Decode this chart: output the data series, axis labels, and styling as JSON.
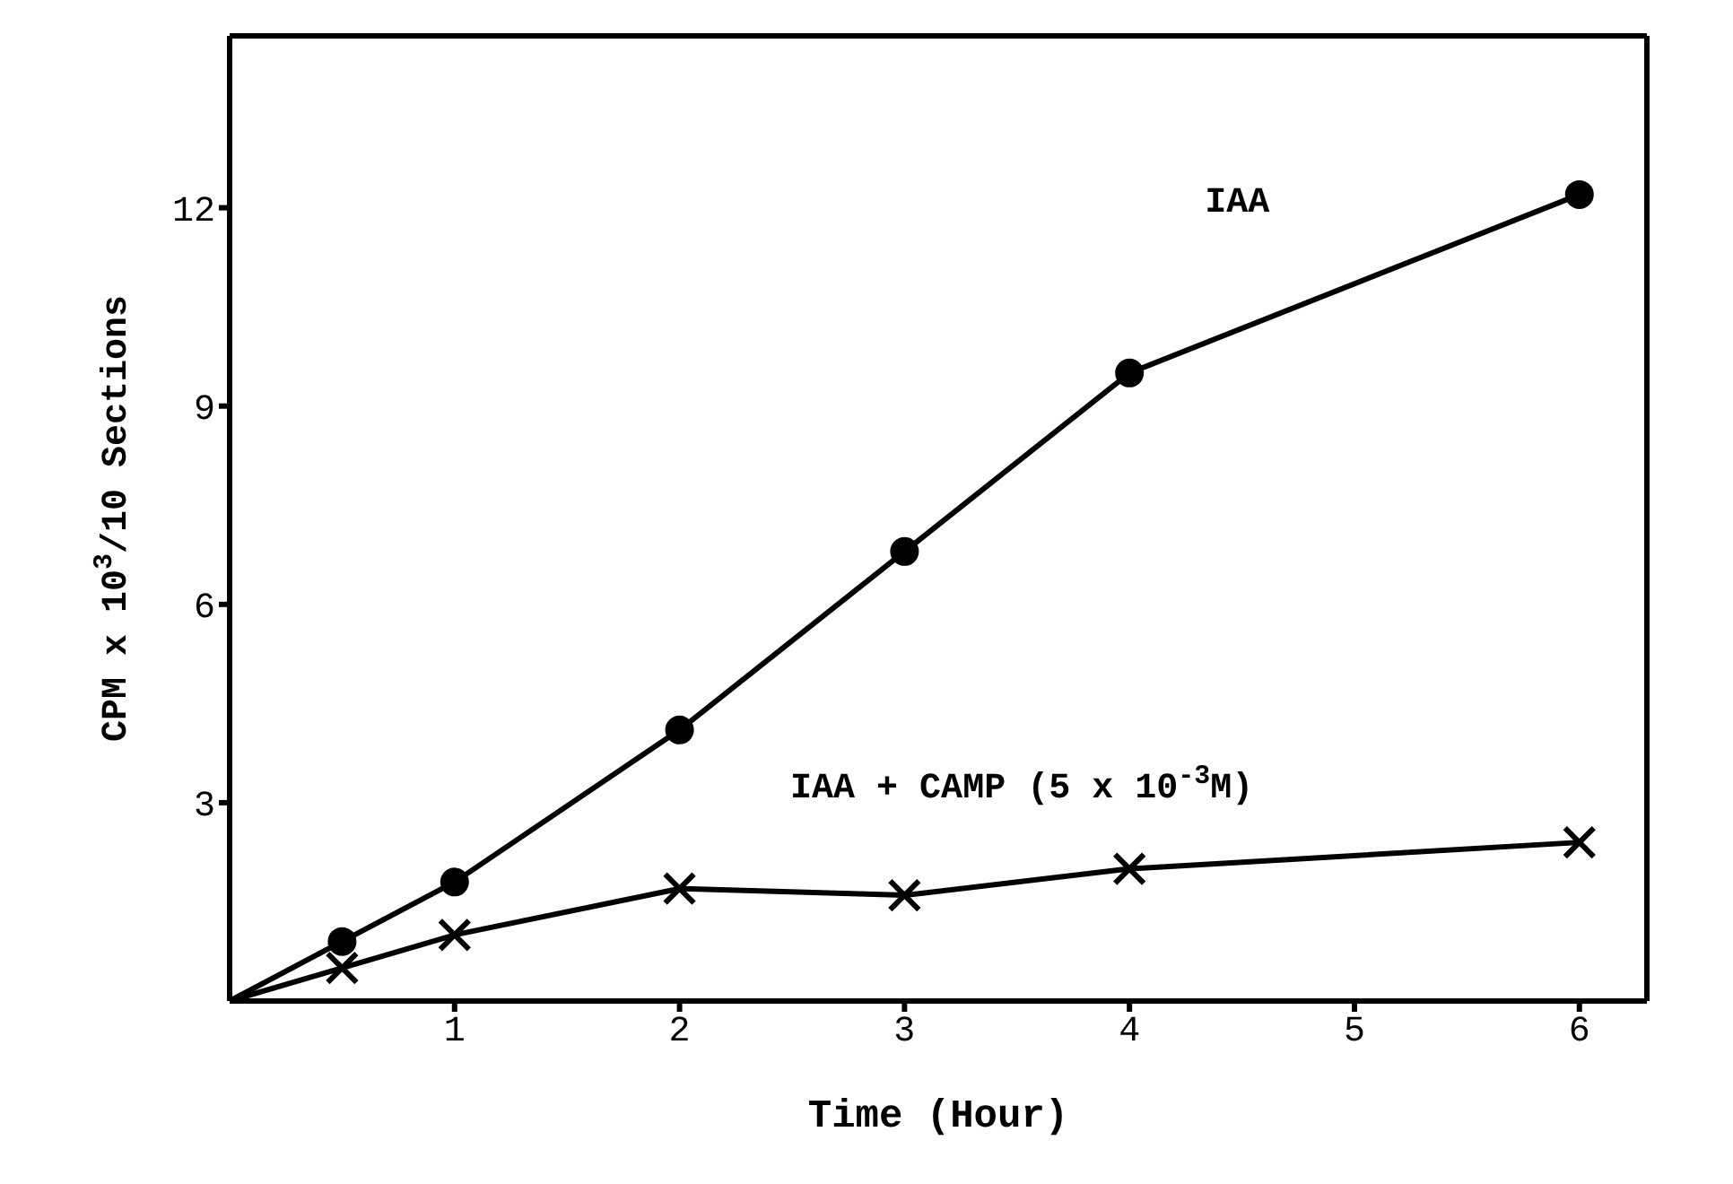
{
  "chart_data": {
    "type": "line",
    "xlabel": "Time (Hour)",
    "ylabel": "CPM x 10$^{3}$/10 Sections",
    "xlim": [
      0,
      6.3
    ],
    "xticks": [
      1,
      2,
      3,
      4,
      5,
      6
    ],
    "ylim": [
      0,
      14.6
    ],
    "yticks": [
      3,
      6,
      9,
      12
    ],
    "series": [
      {
        "name": "IAA",
        "color": "#000000",
        "marker": "circle",
        "x": [
          0,
          0.5,
          1,
          2,
          3,
          4,
          6
        ],
        "values": [
          0,
          0.9,
          1.8,
          4.1,
          6.8,
          9.5,
          12.2
        ]
      },
      {
        "name": "IAA + CAMP (5 x 10$^{-3}$M)",
        "color": "#000000",
        "marker": "cross",
        "x": [
          0,
          0.5,
          1,
          2,
          3,
          4,
          6
        ],
        "values": [
          0,
          0.5,
          1.0,
          1.7,
          1.6,
          2.0,
          2.4
        ]
      }
    ]
  }
}
